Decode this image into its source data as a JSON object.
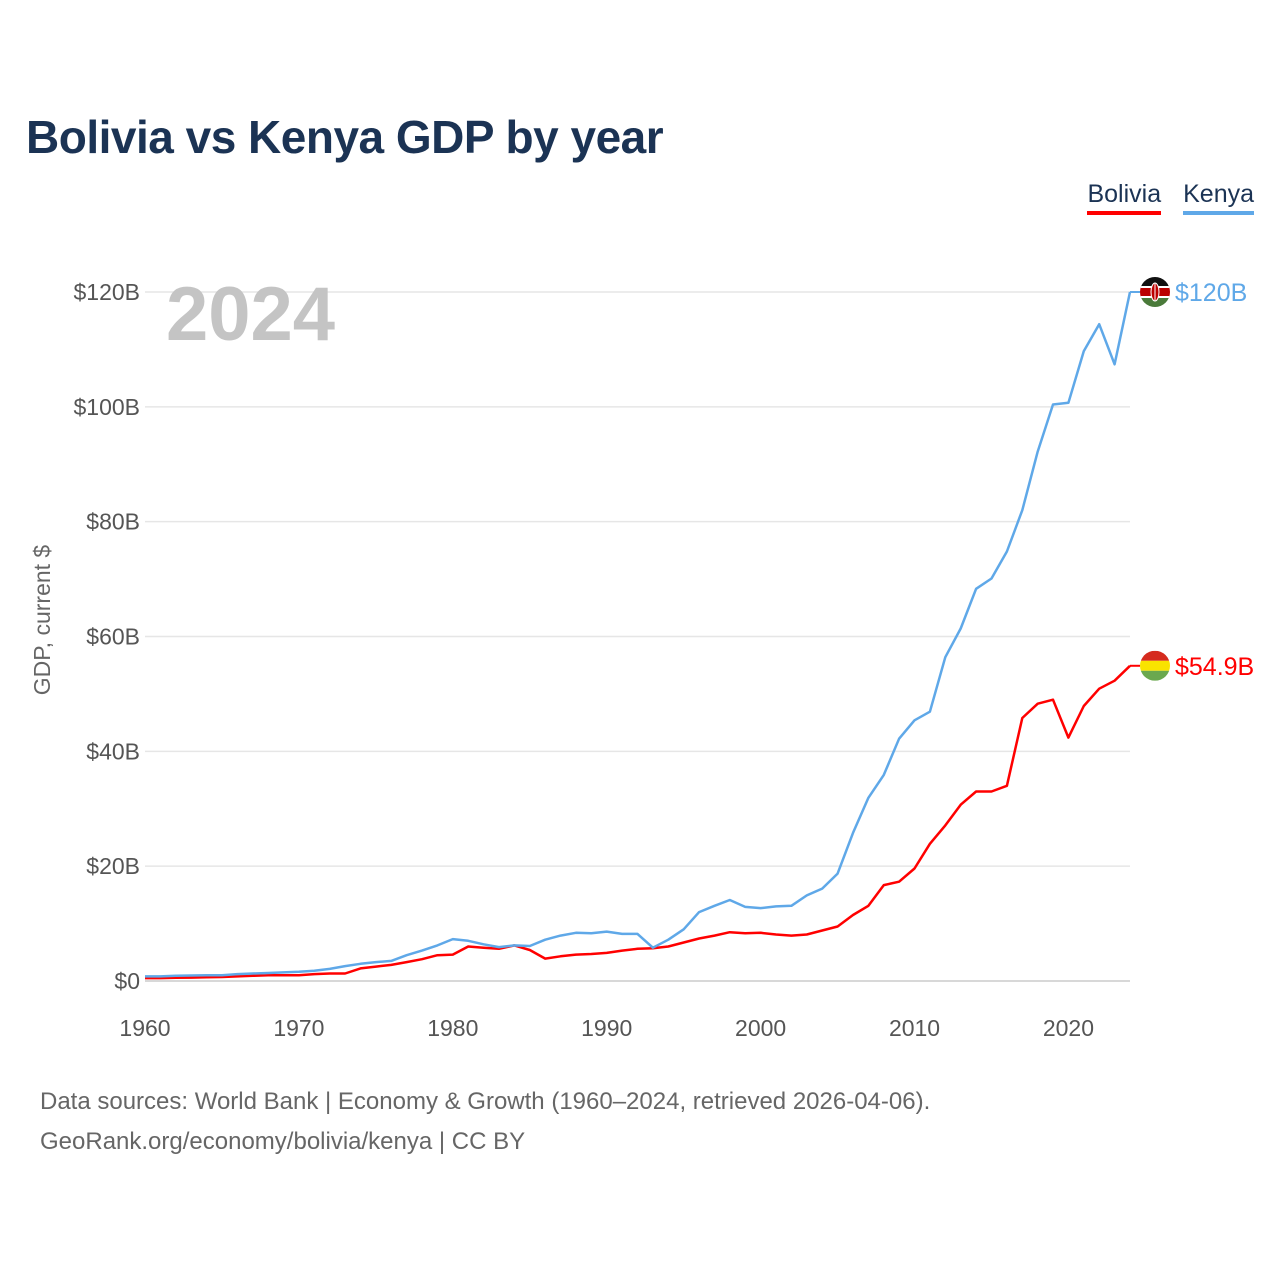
{
  "title": "Bolivia vs Kenya GDP by year",
  "legend": [
    {
      "label": "Bolivia",
      "color": "#ff0000"
    },
    {
      "label": "Kenya",
      "color": "#5fa8e8"
    }
  ],
  "year_label": "2024",
  "footer": {
    "line1": "Data sources: World Bank | Economy & Growth (1960–2024, retrieved 2026-04-06).",
    "line2": "GeoRank.org/economy/bolivia/kenya | CC BY"
  },
  "chart_data": {
    "type": "line",
    "title": "Bolivia vs Kenya GDP by year",
    "xlabel": "",
    "ylabel": "GDP, current $",
    "xlim": [
      1960,
      2024
    ],
    "ylim": [
      0,
      120
    ],
    "y_unit": "billion USD",
    "x_ticks": [
      "1960",
      "1970",
      "1980",
      "1990",
      "2000",
      "2010",
      "2020"
    ],
    "y_ticks": [
      "$0",
      "$20B",
      "$40B",
      "$60B",
      "$80B",
      "$100B",
      "$120B"
    ],
    "grid": true,
    "legend_position": "top-right",
    "x": [
      1960,
      1961,
      1962,
      1963,
      1964,
      1965,
      1966,
      1967,
      1968,
      1969,
      1970,
      1971,
      1972,
      1973,
      1974,
      1975,
      1976,
      1977,
      1978,
      1979,
      1980,
      1981,
      1982,
      1983,
      1984,
      1985,
      1986,
      1987,
      1988,
      1989,
      1990,
      1991,
      1992,
      1993,
      1994,
      1995,
      1996,
      1997,
      1998,
      1999,
      2000,
      2001,
      2002,
      2003,
      2004,
      2005,
      2006,
      2007,
      2008,
      2009,
      2010,
      2011,
      2012,
      2013,
      2014,
      2015,
      2016,
      2017,
      2018,
      2019,
      2020,
      2021,
      2022,
      2023,
      2024
    ],
    "series": [
      {
        "name": "Bolivia",
        "color": "#ff0000",
        "end_label": "$54.9B",
        "values": [
          0.5,
          0.5,
          0.55,
          0.6,
          0.65,
          0.7,
          0.8,
          0.9,
          1.0,
          1.0,
          1.0,
          1.2,
          1.3,
          1.3,
          2.2,
          2.5,
          2.8,
          3.3,
          3.8,
          4.5,
          4.6,
          6.0,
          5.8,
          5.6,
          6.2,
          5.4,
          3.9,
          4.3,
          4.6,
          4.7,
          4.9,
          5.3,
          5.6,
          5.7,
          6.0,
          6.7,
          7.4,
          7.9,
          8.5,
          8.3,
          8.4,
          8.1,
          7.9,
          8.1,
          8.8,
          9.5,
          11.5,
          13.1,
          16.7,
          17.3,
          19.6,
          23.9,
          27.1,
          30.7,
          33.0,
          33.0,
          34.0,
          45.8,
          48.3,
          49.0,
          42.4,
          47.9,
          50.9,
          52.3,
          54.9
        ]
      },
      {
        "name": "Kenya",
        "color": "#5fa8e8",
        "end_label": "$120B",
        "values": [
          0.8,
          0.8,
          0.9,
          0.95,
          1.0,
          1.0,
          1.2,
          1.3,
          1.4,
          1.5,
          1.6,
          1.8,
          2.1,
          2.6,
          3.0,
          3.3,
          3.5,
          4.5,
          5.3,
          6.2,
          7.3,
          7.0,
          6.4,
          5.9,
          6.2,
          6.1,
          7.2,
          7.9,
          8.4,
          8.3,
          8.6,
          8.2,
          8.2,
          5.8,
          7.2,
          9.0,
          12.0,
          13.1,
          14.1,
          12.9,
          12.7,
          13.0,
          13.1,
          14.9,
          16.1,
          18.7,
          25.8,
          31.9,
          35.9,
          42.2,
          45.4,
          46.9,
          56.4,
          61.4,
          68.3,
          70.1,
          74.8,
          82.0,
          92.2,
          100.4,
          100.7,
          109.7,
          114.4,
          107.4,
          120.0
        ]
      }
    ]
  }
}
